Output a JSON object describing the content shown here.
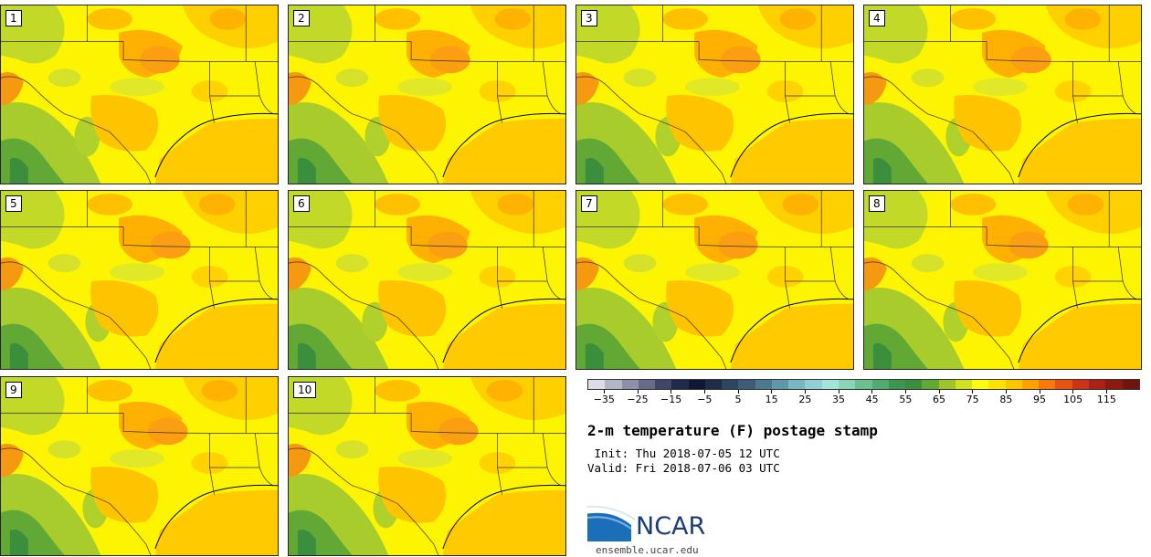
{
  "panels": [
    {
      "label": "1"
    },
    {
      "label": "2"
    },
    {
      "label": "3"
    },
    {
      "label": "4"
    },
    {
      "label": "5"
    },
    {
      "label": "6"
    },
    {
      "label": "7"
    },
    {
      "label": "8"
    },
    {
      "label": "9"
    },
    {
      "label": "10"
    }
  ],
  "colorbar": {
    "ticks": [
      "−35",
      "−25",
      "−15",
      "−5",
      "5",
      "15",
      "25",
      "35",
      "45",
      "55",
      "65",
      "75",
      "85",
      "95",
      "105",
      "115"
    ],
    "colors": [
      "#dcdde6",
      "#b4b6c6",
      "#8d90a8",
      "#666b88",
      "#3e4768",
      "#1f2a4c",
      "#0e1834",
      "#1e2c48",
      "#2e4460",
      "#3d5c76",
      "#4c7890",
      "#5e98aa",
      "#76b8c0",
      "#90d0d2",
      "#a4e2dc",
      "#8cd4b6",
      "#6cc08e",
      "#50ac6e",
      "#3d9650",
      "#3a8e3c",
      "#62a834",
      "#9ec42a",
      "#d2e024",
      "#fcfc12",
      "#ffe200",
      "#ffc600",
      "#ffa200",
      "#f97a0a",
      "#e85410",
      "#cc3216",
      "#aa2216",
      "#8c1a12",
      "#701410"
    ]
  },
  "title": "2-m temperature (F) postage stamp",
  "init": " Init: Thu 2018-07-05 12 UTC",
  "valid": "Valid: Fri 2018-07-06 03 UTC",
  "logo": {
    "text": "NCAR"
  },
  "website": "ensemble.ucar.edu"
}
